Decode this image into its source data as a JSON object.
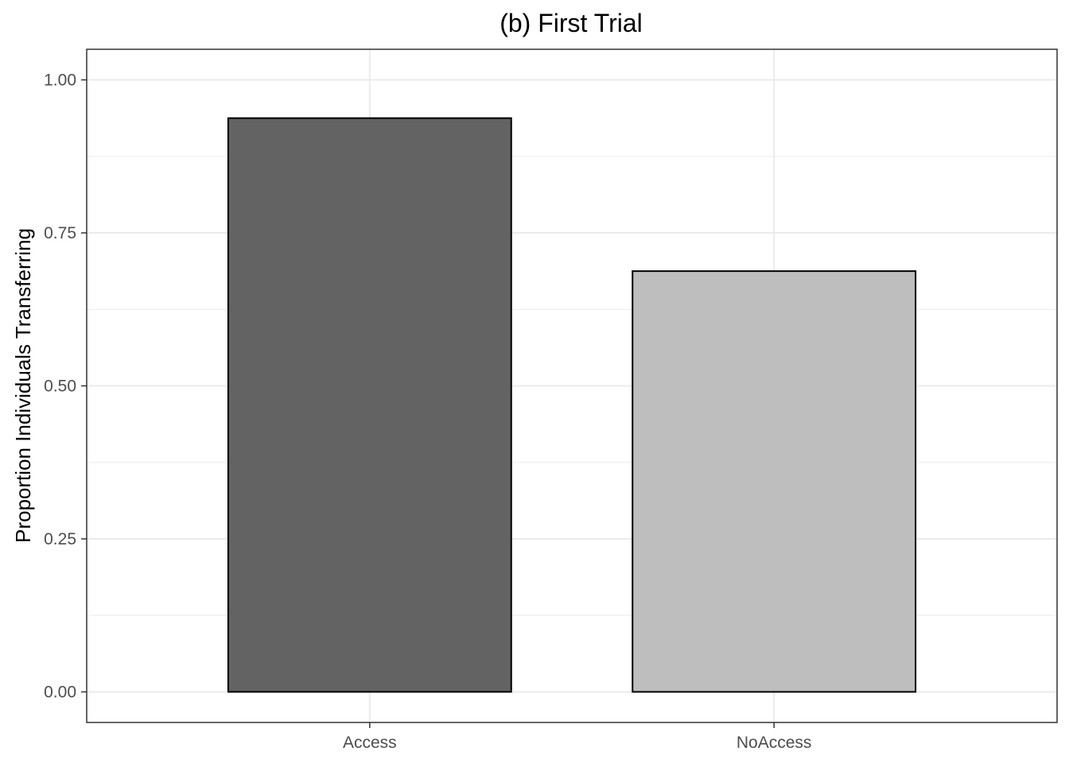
{
  "chart_data": {
    "type": "bar",
    "title": "(b) First Trial",
    "xlabel": "",
    "ylabel": "Proportion Individuals Transferring",
    "categories": [
      "Access",
      "NoAccess"
    ],
    "values": [
      0.9375,
      0.6875
    ],
    "bar_colors": [
      "#636363",
      "#bebebe"
    ],
    "bar_outline_color": "#000000",
    "ylim": [
      -0.05,
      1.05
    ],
    "yticks": [
      0,
      0.25,
      0.5,
      0.75,
      1.0
    ],
    "ytick_labels": [
      "0.00",
      "0.25",
      "0.50",
      "0.75",
      "1.00"
    ],
    "grid": true,
    "grid_color": "#ebebeb",
    "panel_border_color": "#333333",
    "legend": "none"
  }
}
